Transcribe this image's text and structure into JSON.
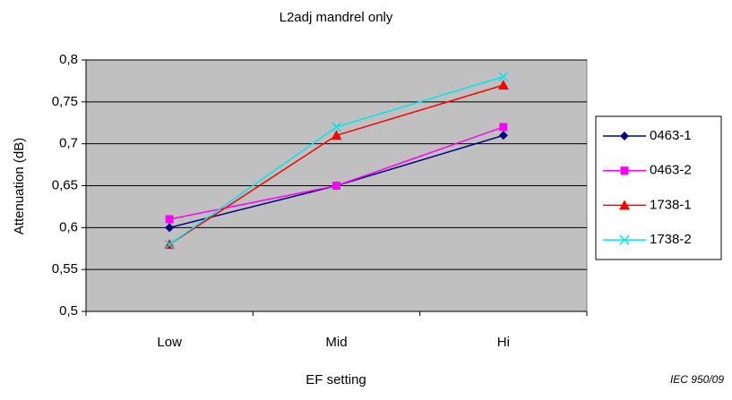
{
  "chart_data": {
    "type": "line",
    "title": "L2adj mandrel only",
    "xlabel": "EF setting",
    "ylabel": "Attenuation   (dB)",
    "note": "IEC 950/09",
    "categories": [
      "Low",
      "Mid",
      "Hi"
    ],
    "series": [
      {
        "name": "0463-1",
        "color": "#000080",
        "marker": "diamond",
        "values": [
          0.6,
          0.65,
          0.71
        ]
      },
      {
        "name": "0463-2",
        "color": "#ff00ff",
        "marker": "square",
        "values": [
          0.61,
          0.65,
          0.72
        ]
      },
      {
        "name": "1738-1",
        "color": "#ff0000",
        "marker": "triangle",
        "values": [
          0.58,
          0.71,
          0.77
        ]
      },
      {
        "name": "1738-2",
        "color": "#00e5ee",
        "marker": "x",
        "values": [
          0.58,
          0.72,
          0.78
        ]
      }
    ],
    "ylim": [
      0.5,
      0.8
    ],
    "yticks": [
      {
        "value": 0.5,
        "label": "0,5"
      },
      {
        "value": 0.55,
        "label": "0,55"
      },
      {
        "value": 0.6,
        "label": "0,6"
      },
      {
        "value": 0.65,
        "label": "0,65"
      },
      {
        "value": 0.7,
        "label": "0,7"
      },
      {
        "value": 0.75,
        "label": "0,75"
      },
      {
        "value": 0.8,
        "label": "0,8"
      }
    ],
    "grid": true,
    "legend": "right"
  }
}
